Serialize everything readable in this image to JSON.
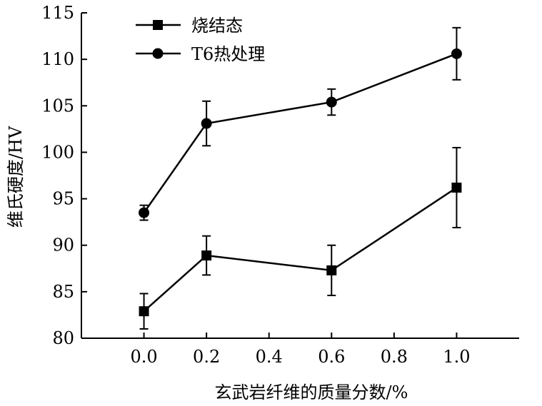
{
  "chart_data": {
    "type": "line",
    "title": "",
    "xlabel": "玄武岩纤维的质量分数/%",
    "ylabel": "维氏硬度/HV",
    "xlim": [
      -0.2,
      1.2
    ],
    "ylim": [
      80,
      115
    ],
    "xticks": [
      0.0,
      0.2,
      0.4,
      0.6,
      0.8,
      1.0
    ],
    "xtick_labels": [
      "0.0",
      "0.2",
      "0.4",
      "0.6",
      "0.8",
      "1.0"
    ],
    "yticks": [
      80,
      85,
      90,
      95,
      100,
      105,
      110,
      115
    ],
    "ytick_labels": [
      "80",
      "85",
      "90",
      "95",
      "100",
      "105",
      "110",
      "115"
    ],
    "grid": false,
    "legend_position": "top-left",
    "series": [
      {
        "name": "烧结态",
        "marker": "square",
        "color": "#000000",
        "x": [
          0.0,
          0.2,
          0.6,
          1.0
        ],
        "y": [
          82.9,
          88.9,
          87.3,
          96.2
        ],
        "error": [
          1.9,
          2.1,
          2.7,
          4.3
        ]
      },
      {
        "name": "T6热处理",
        "marker": "circle",
        "color": "#000000",
        "x": [
          0.0,
          0.2,
          0.6,
          1.0
        ],
        "y": [
          93.5,
          103.1,
          105.4,
          110.6
        ],
        "error": [
          0.8,
          2.4,
          1.4,
          2.8
        ]
      }
    ]
  }
}
